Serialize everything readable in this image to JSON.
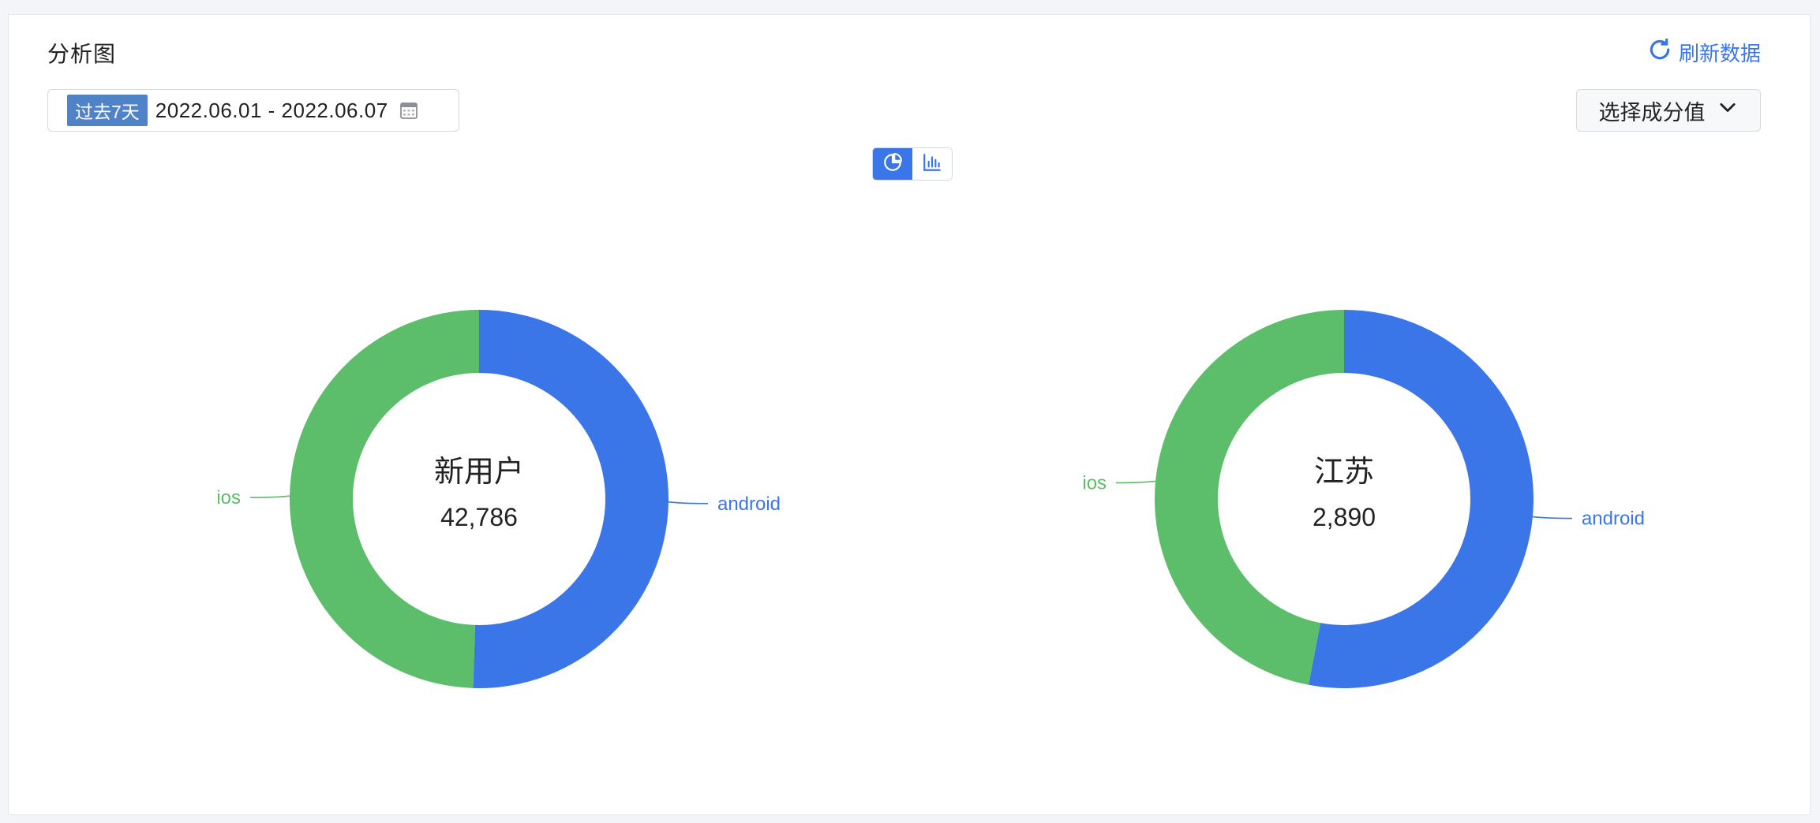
{
  "header": {
    "title": "分析图",
    "refresh_label": "刷新数据"
  },
  "filters": {
    "range_tag": "过去7天",
    "date_range": "2022.06.01 - 2022.06.07",
    "select_label": "选择成分值"
  },
  "view_toggle": {
    "options": [
      "pie-chart-icon",
      "bar-chart-icon"
    ],
    "active": "pie-chart-icon"
  },
  "colors": {
    "accent": "#3b76e8",
    "android": "#3b76e8",
    "ios": "#5cbd6a"
  },
  "chart_data": [
    {
      "type": "pie",
      "center_label": "新用户",
      "center_value": "42,786",
      "slices": [
        {
          "name": "android",
          "value": 0.505,
          "color": "#3b76e8"
        },
        {
          "name": "ios",
          "value": 0.495,
          "color": "#5cbd6a"
        }
      ]
    },
    {
      "type": "pie",
      "center_label": "江苏",
      "center_value": "2,890",
      "slices": [
        {
          "name": "android",
          "value": 0.53,
          "color": "#3b76e8"
        },
        {
          "name": "ios",
          "value": 0.47,
          "color": "#5cbd6a"
        }
      ]
    }
  ]
}
